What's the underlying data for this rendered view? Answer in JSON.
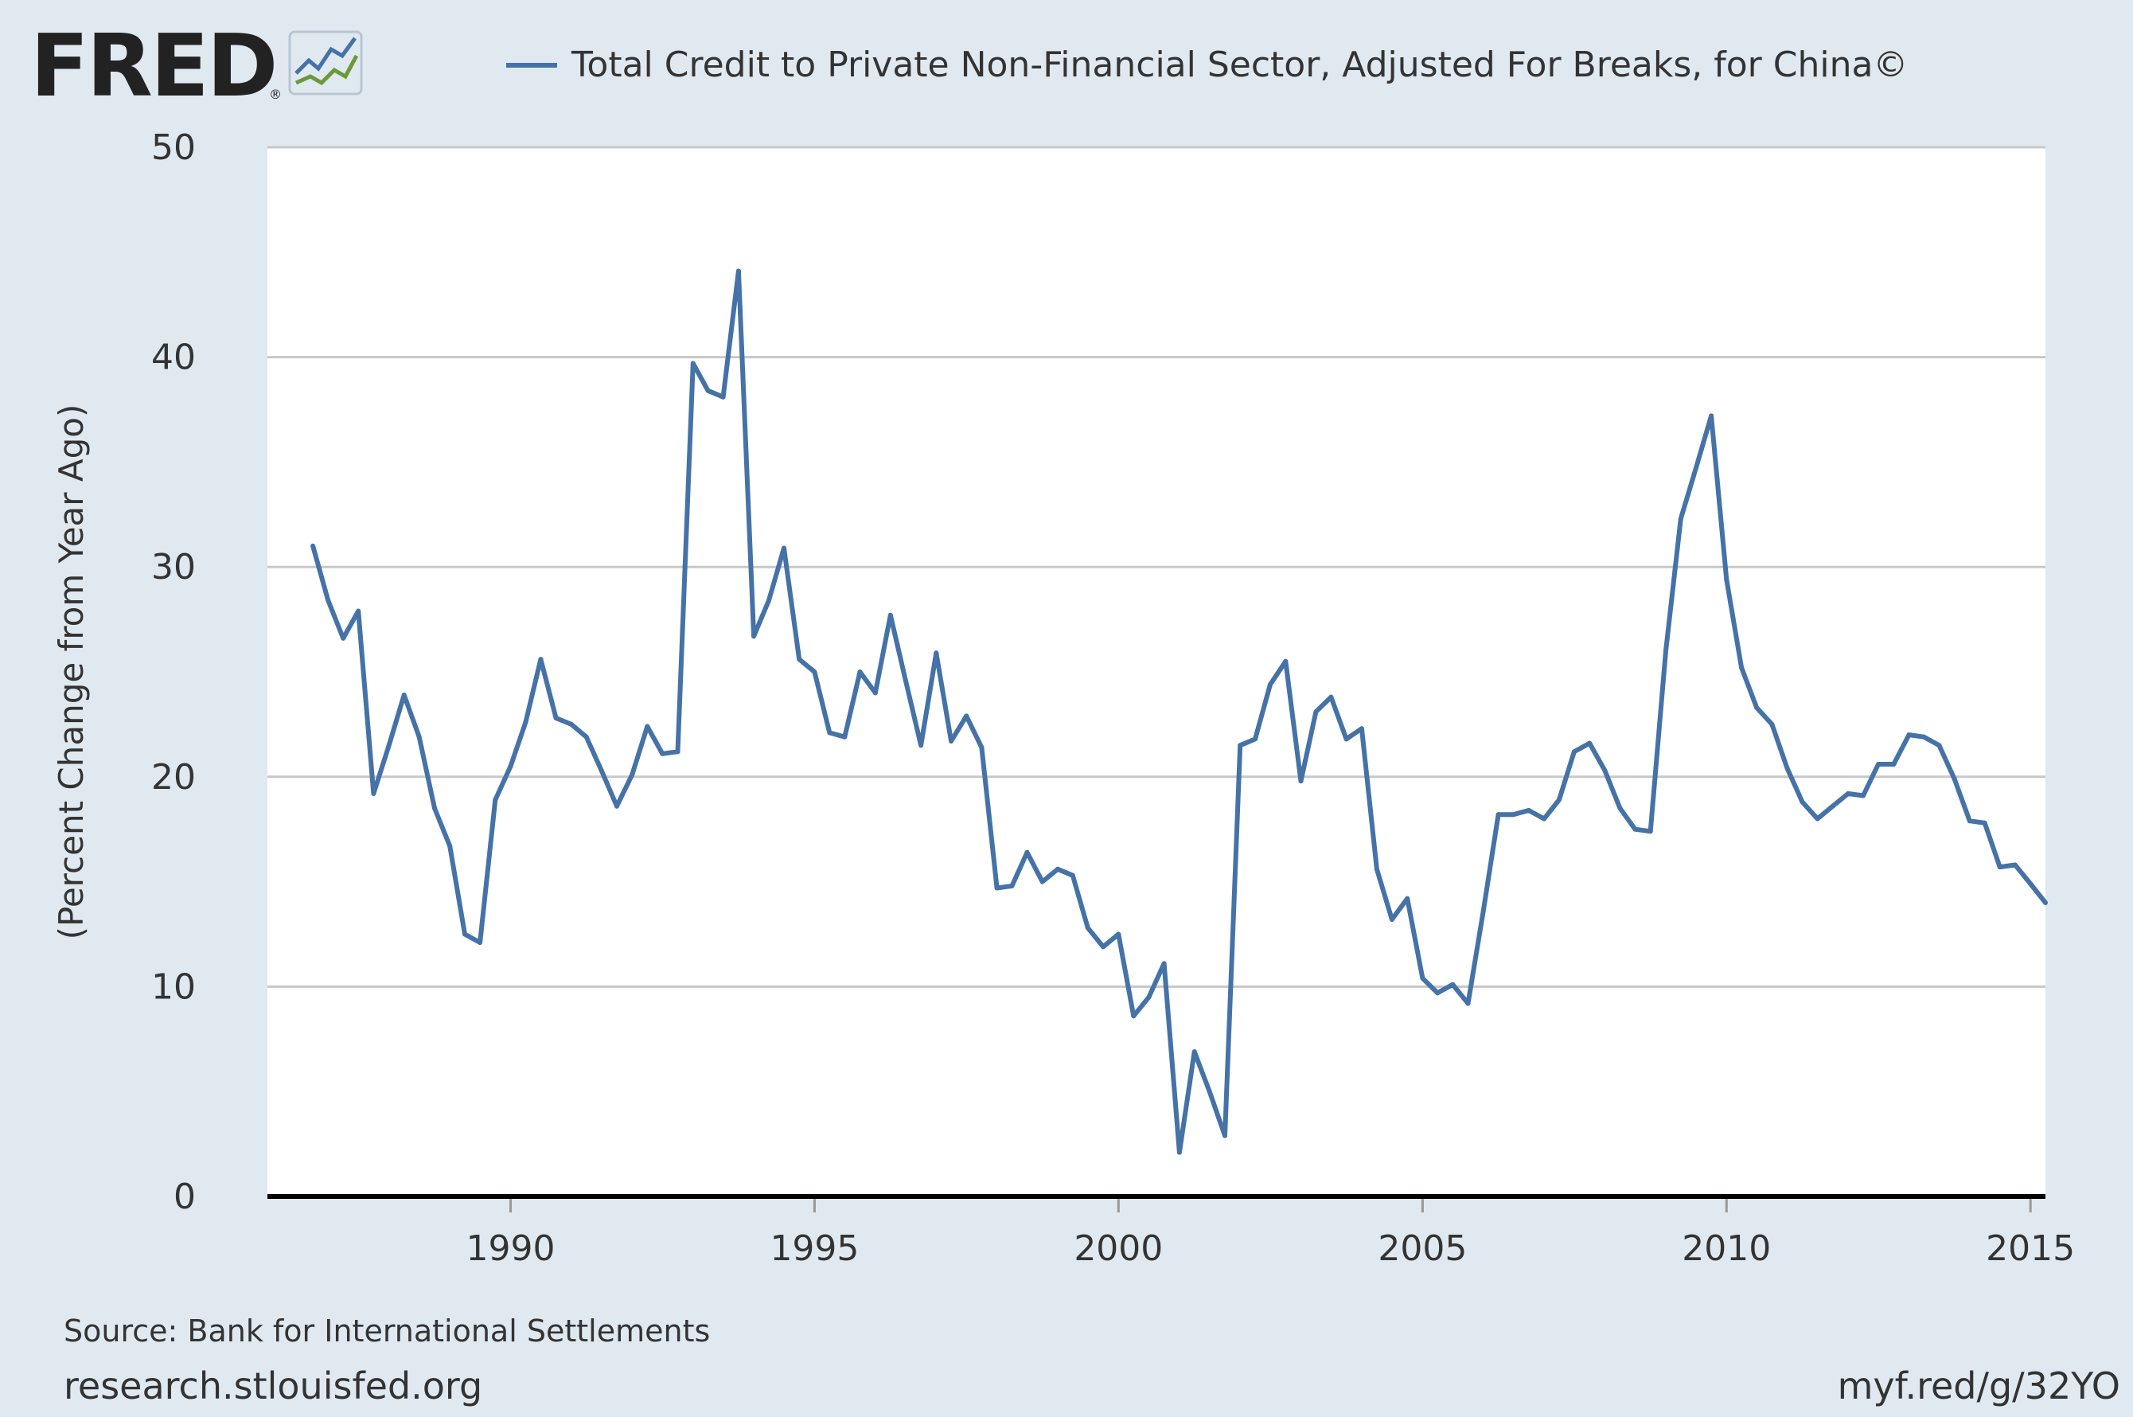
{
  "header": {
    "logo_text": "FRED",
    "registered_mark": "®",
    "legend_label": "Total Credit to Private Non-Financial Sector, Adjusted For Breaks, for China©"
  },
  "footer": {
    "source": "Source: Bank for International Settlements",
    "site": "research.stlouisfed.org",
    "short_link": "myf.red/g/32YO"
  },
  "colors": {
    "page_bg": "#e1e9f0",
    "plot_bg": "#ffffff",
    "series": "#4572a7",
    "grid": "#c8c8c8",
    "baseline": "#000000",
    "text": "#333333"
  },
  "chart_data": {
    "type": "line",
    "title": "",
    "xlabel": "",
    "ylabel": "(Percent Change from Year Ago)",
    "ylim": [
      0,
      50
    ],
    "xlim": [
      "1986-01-01",
      "2015-04-01"
    ],
    "grid": true,
    "legend_position": "top",
    "y_ticks": [
      "0",
      "10",
      "20",
      "30",
      "40",
      "50"
    ],
    "x_ticks": [
      "1990",
      "1995",
      "2000",
      "2005",
      "2010",
      "2015"
    ],
    "series": [
      {
        "name": "Total Credit to Private Non-Financial Sector, Adjusted For Breaks, for China©",
        "x": [
          "1986-10-01",
          "1987-01-01",
          "1987-04-01",
          "1987-07-01",
          "1987-10-01",
          "1988-01-01",
          "1988-04-01",
          "1988-07-01",
          "1988-10-01",
          "1989-01-01",
          "1989-04-01",
          "1989-07-01",
          "1989-10-01",
          "1990-01-01",
          "1990-04-01",
          "1990-07-01",
          "1990-10-01",
          "1991-01-01",
          "1991-04-01",
          "1991-07-01",
          "1991-10-01",
          "1992-01-01",
          "1992-04-01",
          "1992-07-01",
          "1992-10-01",
          "1993-01-01",
          "1993-04-01",
          "1993-07-01",
          "1993-10-01",
          "1994-01-01",
          "1994-04-01",
          "1994-07-01",
          "1994-10-01",
          "1995-01-01",
          "1995-04-01",
          "1995-07-01",
          "1995-10-01",
          "1996-01-01",
          "1996-04-01",
          "1996-07-01",
          "1996-10-01",
          "1997-01-01",
          "1997-04-01",
          "1997-07-01",
          "1997-10-01",
          "1998-01-01",
          "1998-04-01",
          "1998-07-01",
          "1998-10-01",
          "1999-01-01",
          "1999-04-01",
          "1999-07-01",
          "1999-10-01",
          "2000-01-01",
          "2000-04-01",
          "2000-07-01",
          "2000-10-01",
          "2001-01-01",
          "2001-04-01",
          "2001-07-01",
          "2001-10-01",
          "2002-01-01",
          "2002-04-01",
          "2002-07-01",
          "2002-10-01",
          "2003-01-01",
          "2003-04-01",
          "2003-07-01",
          "2003-10-01",
          "2004-01-01",
          "2004-04-01",
          "2004-07-01",
          "2004-10-01",
          "2005-01-01",
          "2005-04-01",
          "2005-07-01",
          "2005-10-01",
          "2006-01-01",
          "2006-04-01",
          "2006-07-01",
          "2006-10-01",
          "2007-01-01",
          "2007-04-01",
          "2007-07-01",
          "2007-10-01",
          "2008-01-01",
          "2008-04-01",
          "2008-07-01",
          "2008-10-01",
          "2009-01-01",
          "2009-04-01",
          "2009-07-01",
          "2009-10-01",
          "2010-01-01",
          "2010-04-01",
          "2010-07-01",
          "2010-10-01",
          "2011-01-01",
          "2011-04-01",
          "2011-07-01",
          "2011-10-01",
          "2012-01-01",
          "2012-04-01",
          "2012-07-01",
          "2012-10-01",
          "2013-01-01",
          "2013-04-01",
          "2013-07-01",
          "2013-10-01",
          "2014-01-01",
          "2014-04-01",
          "2014-07-01",
          "2014-10-01",
          "2015-01-01",
          "2015-04-01"
        ],
        "values": [
          31.0,
          28.4,
          26.6,
          27.9,
          19.2,
          21.5,
          23.9,
          21.9,
          18.5,
          16.7,
          12.5,
          12.1,
          18.9,
          20.5,
          22.6,
          25.6,
          22.8,
          22.5,
          21.9,
          20.3,
          18.6,
          20.1,
          22.4,
          21.1,
          21.2,
          39.7,
          38.4,
          38.1,
          44.1,
          26.7,
          28.4,
          30.9,
          25.6,
          25.0,
          22.1,
          21.9,
          25.0,
          24.0,
          27.7,
          24.6,
          21.5,
          25.9,
          21.7,
          22.9,
          21.4,
          14.7,
          14.8,
          16.4,
          15.0,
          15.6,
          15.3,
          12.8,
          11.9,
          12.5,
          8.6,
          9.5,
          11.1,
          2.1,
          6.9,
          5.0,
          2.9,
          21.5,
          21.8,
          24.4,
          25.5,
          19.8,
          23.1,
          23.8,
          21.8,
          22.3,
          15.6,
          13.2,
          14.2,
          10.4,
          9.7,
          10.1,
          9.2,
          13.6,
          18.2,
          18.2,
          18.4,
          18.0,
          18.9,
          21.2,
          21.6,
          20.3,
          18.5,
          17.5,
          17.4,
          26.0,
          32.3,
          34.7,
          37.2,
          29.4,
          25.2,
          23.3,
          22.5,
          20.4,
          18.8,
          18.0,
          18.6,
          19.2,
          19.1,
          20.6,
          20.6,
          22.0,
          21.9,
          21.5,
          19.9,
          17.9,
          17.8,
          15.7,
          15.8,
          14.9,
          14.0
        ]
      }
    ]
  }
}
